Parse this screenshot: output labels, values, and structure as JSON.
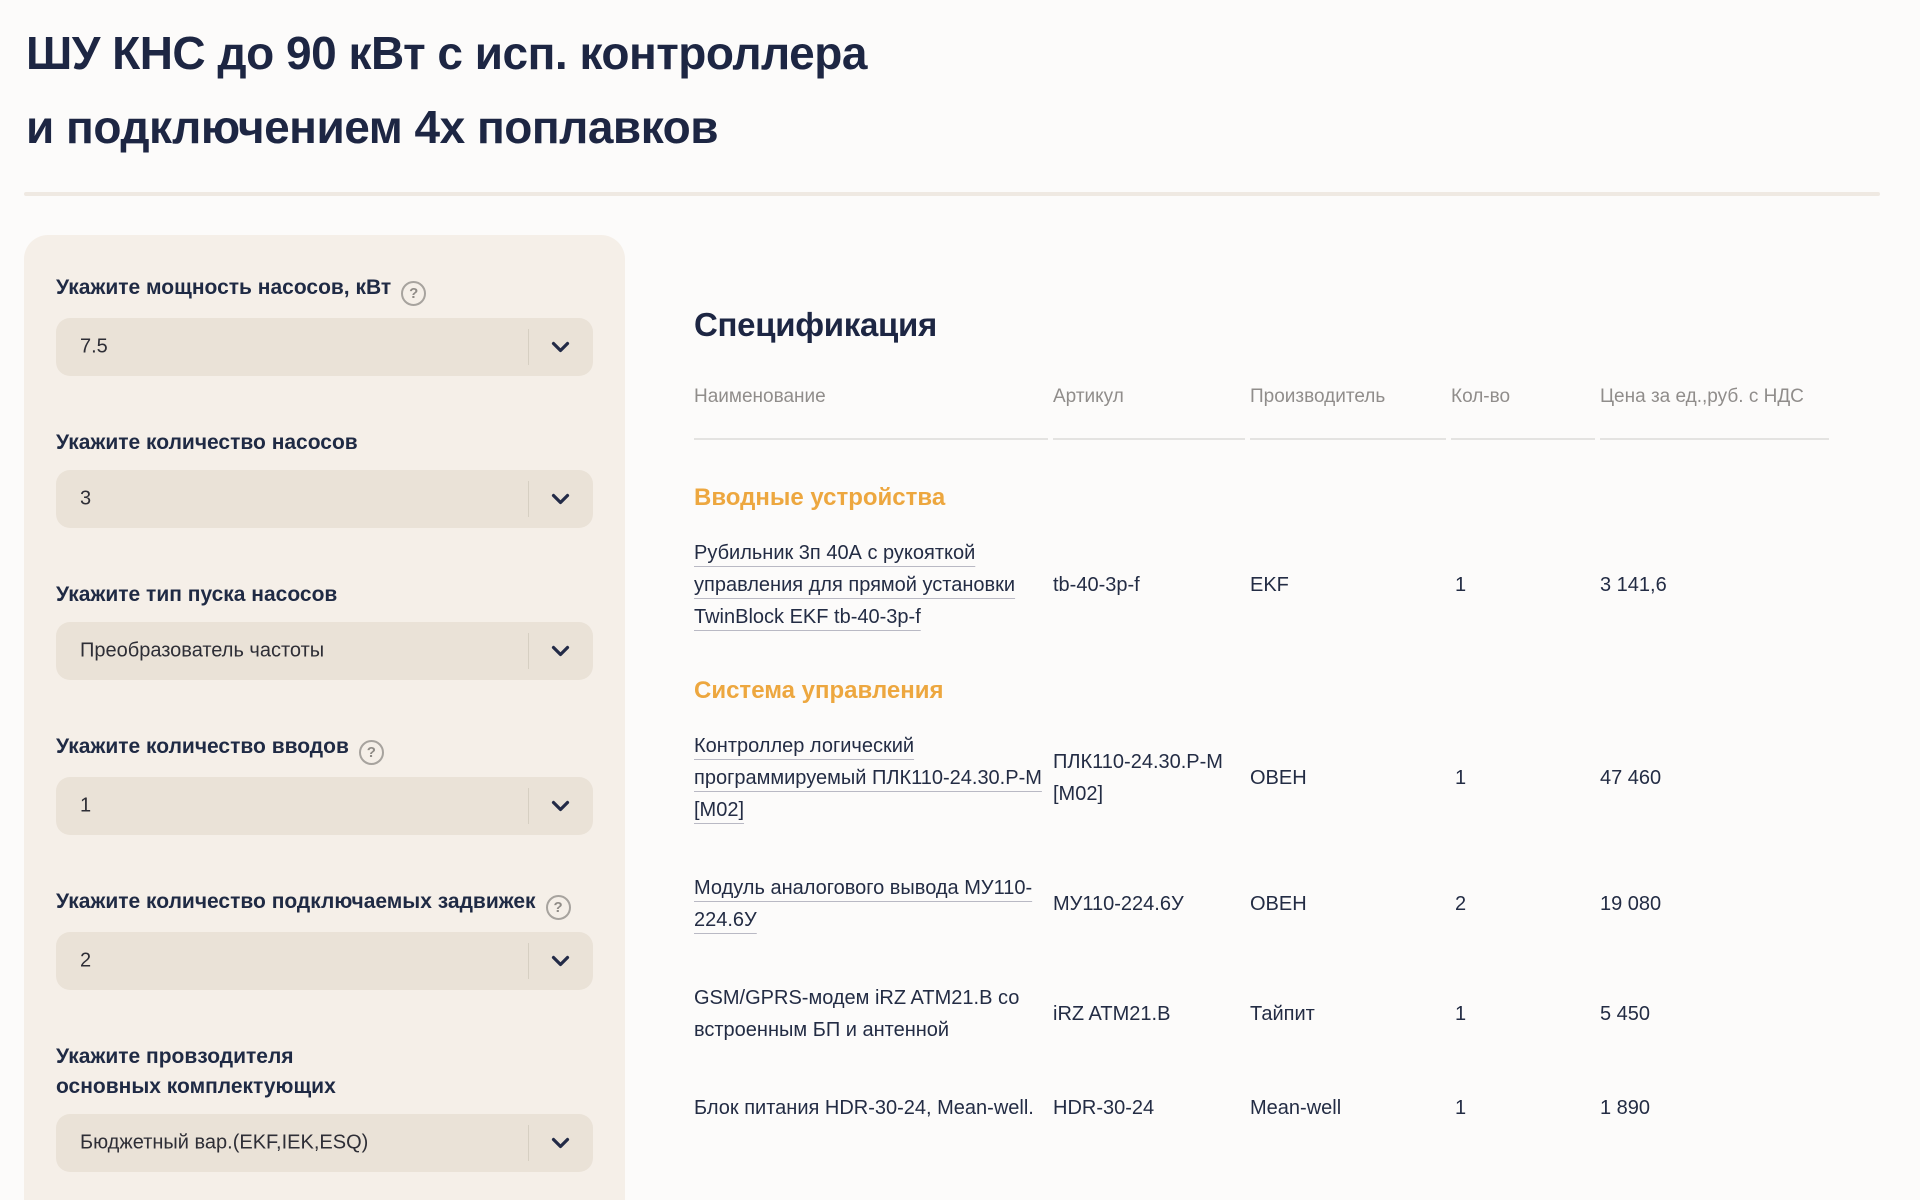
{
  "page": {
    "title": "ШУ КНС до 90 кВт с исп. контроллера\nи подключением 4х поплавков"
  },
  "configurator": {
    "help_icon_glyph": "?",
    "fields": [
      {
        "label": "Укажите мощность насосов, кВт",
        "help": true,
        "value": "7.5"
      },
      {
        "label": "Укажите количество насосов",
        "help": false,
        "value": "3"
      },
      {
        "label": "Укажите тип пуска насосов",
        "help": false,
        "value": "Преобразователь частоты"
      },
      {
        "label": "Укажите количество вводов",
        "help": true,
        "value": "1"
      },
      {
        "label": "Укажите количество подключаемых задвижек",
        "help": true,
        "value": "2"
      },
      {
        "label": "Укажите провзодителя\nосновных комплектующих",
        "help": false,
        "value": "Бюджетный вар.(EKF,IEK,ESQ)"
      }
    ]
  },
  "specification": {
    "heading": "Спецификация",
    "columns": [
      "Наименование",
      "Артикул",
      "Производитель",
      "Кол-во",
      "Цена за ед.,руб. с НДС"
    ],
    "sections": [
      {
        "title": "Вводные устройства",
        "rows": [
          {
            "name": "Рубильник 3п 40А с рукояткой управления для прямой установки TwinBlock EKF tb-40-3p-f",
            "link": true,
            "article": "tb-40-3p-f",
            "manufacturer": "EKF",
            "qty": "1",
            "price": "3 141,6"
          }
        ]
      },
      {
        "title": "Система управления",
        "rows": [
          {
            "name": "Контроллер логический программируемый ПЛК110-24.30.Р-М [М02]",
            "link": true,
            "article": "ПЛК110-24.30.Р-М [М02]",
            "manufacturer": "ОВЕН",
            "qty": "1",
            "price": "47 460"
          },
          {
            "name": "Модуль аналогового вывода МУ110-224.6У",
            "link": true,
            "article": "МУ110-224.6У",
            "manufacturer": "ОВЕН",
            "qty": "2",
            "price": "19 080"
          },
          {
            "name": "GSM/GPRS-модем iRZ ATM21.B со встроенным БП и антенной",
            "link": false,
            "article": "iRZ ATM21.B",
            "manufacturer": "Тайпит",
            "qty": "1",
            "price": "5 450"
          },
          {
            "name": "Блок питания HDR-30-24, Mean-well.",
            "link": false,
            "article": "HDR-30-24",
            "manufacturer": "Mean-well",
            "qty": "1",
            "price": "1 890"
          }
        ]
      }
    ]
  },
  "colors": {
    "navy": "#1d2643",
    "orange_section": "#eda73f",
    "sidebar_bg": "#f5efe8",
    "select_bg": "#eae2d7",
    "table_header_grey": "#908d8b",
    "page_bg": "#fcfbfa"
  }
}
